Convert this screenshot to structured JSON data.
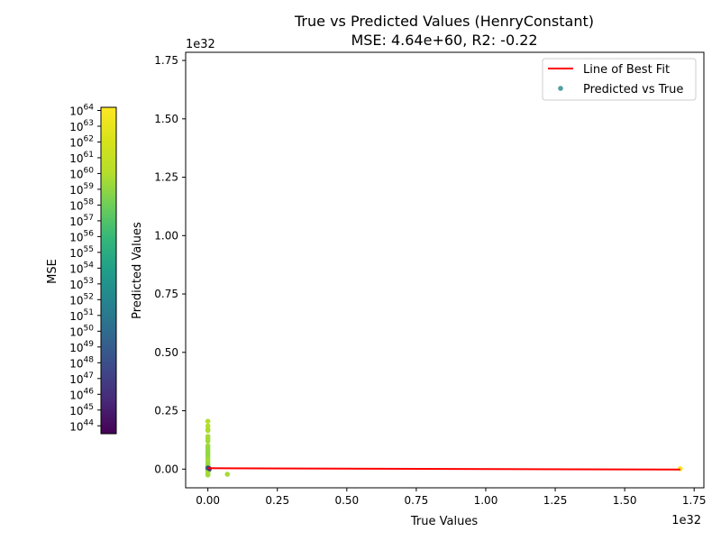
{
  "chart_data": {
    "type": "scatter",
    "title": "True vs Predicted Values (HenryConstant)",
    "subtitle": "MSE: 4.64e+60, R2: -0.22",
    "xlabel": "True Values",
    "ylabel": "Predicted Values",
    "x_offset_label": "1e32",
    "y_offset_label": "1e32",
    "xlim": [
      -0.08,
      1.785
    ],
    "ylim": [
      -0.08,
      1.785
    ],
    "x_ticks": [
      0.0,
      0.25,
      0.5,
      0.75,
      1.0,
      1.25,
      1.5,
      1.75
    ],
    "x_tick_labels": [
      "0.00",
      "0.25",
      "0.50",
      "0.75",
      "1.00",
      "1.25",
      "1.50",
      "1.75"
    ],
    "y_ticks": [
      0.0,
      0.25,
      0.5,
      0.75,
      1.0,
      1.25,
      1.5,
      1.75
    ],
    "y_tick_labels": [
      "0.00",
      "0.25",
      "0.50",
      "0.75",
      "1.00",
      "1.25",
      "1.50",
      "1.75"
    ],
    "grid": false,
    "legend": {
      "placement": "top-right",
      "entries": [
        {
          "label": "Line of Best Fit",
          "kind": "line",
          "color": "#ff0000"
        },
        {
          "label": "Predicted vs True",
          "kind": "marker",
          "color": "#4f9fa0"
        }
      ]
    },
    "best_fit_line": {
      "name": "Line of Best Fit",
      "color": "#ff0000",
      "x": [
        0.0,
        1.7
      ],
      "y": [
        0.004,
        -0.002
      ]
    },
    "points": [
      {
        "x": 0.0,
        "y": 0.205,
        "c": "#b5de2b"
      },
      {
        "x": 0.0,
        "y": 0.185,
        "c": "#b5de2b"
      },
      {
        "x": 0.0,
        "y": 0.17,
        "c": "#addc30"
      },
      {
        "x": 0.0,
        "y": 0.165,
        "c": "#addc30"
      },
      {
        "x": 0.0,
        "y": 0.14,
        "c": "#a5db36"
      },
      {
        "x": 0.0,
        "y": 0.13,
        "c": "#a5db36"
      },
      {
        "x": 0.0,
        "y": 0.12,
        "c": "#9fda3a"
      },
      {
        "x": 0.0,
        "y": 0.1,
        "c": "#9fda3a"
      },
      {
        "x": 0.0,
        "y": 0.09,
        "c": "#95d840"
      },
      {
        "x": 0.0,
        "y": 0.08,
        "c": "#95d840"
      },
      {
        "x": 0.0,
        "y": 0.07,
        "c": "#8fd744"
      },
      {
        "x": 0.0,
        "y": 0.06,
        "c": "#8fd744"
      },
      {
        "x": 0.0,
        "y": 0.05,
        "c": "#95d840"
      },
      {
        "x": 0.0,
        "y": 0.04,
        "c": "#9fda3a"
      },
      {
        "x": 0.0,
        "y": 0.03,
        "c": "#a5db36"
      },
      {
        "x": 0.0,
        "y": 0.02,
        "c": "#8fd744"
      },
      {
        "x": 0.0,
        "y": 0.012,
        "c": "#9fda3a"
      },
      {
        "x": 0.0,
        "y": 0.005,
        "c": "#3b528b"
      },
      {
        "x": 0.0,
        "y": 0.0,
        "c": "#31688e"
      },
      {
        "x": 0.003,
        "y": -0.005,
        "c": "#2c728e"
      },
      {
        "x": 0.0,
        "y": -0.01,
        "c": "#9fda3a"
      },
      {
        "x": 0.0,
        "y": -0.02,
        "c": "#a5db36"
      },
      {
        "x": 0.0,
        "y": -0.025,
        "c": "#9fda3a"
      },
      {
        "x": 0.005,
        "y": 0.002,
        "c": "#46327e"
      },
      {
        "x": 0.07,
        "y": -0.022,
        "c": "#a5db36"
      },
      {
        "x": 1.7,
        "y": 0.002,
        "c": "#fde725"
      }
    ]
  },
  "colorbar": {
    "label": "MSE",
    "scale": "log",
    "colormap": "viridis",
    "range_exponents": [
      43.5,
      64.2
    ],
    "tick_base": "10",
    "tick_exponents": [
      "44",
      "45",
      "46",
      "47",
      "48",
      "49",
      "50",
      "51",
      "52",
      "53",
      "54",
      "55",
      "56",
      "57",
      "58",
      "59",
      "60",
      "61",
      "62",
      "63",
      "64"
    ]
  }
}
